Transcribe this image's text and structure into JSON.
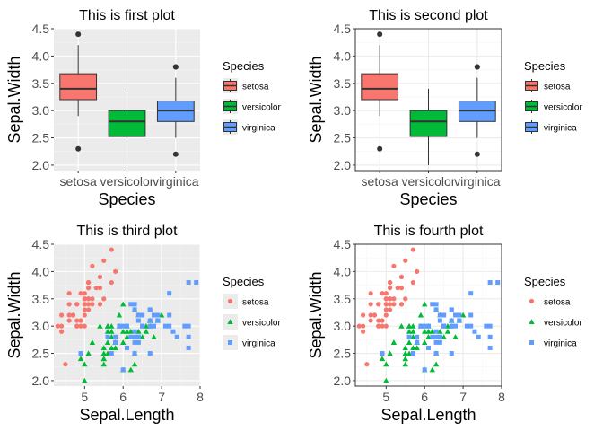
{
  "colors": {
    "setosa": "#F8766D",
    "versicolor": "#00BA38",
    "virginica": "#619CFF",
    "panel_grey": "#EBEBEB",
    "grid_grey_major": "#FFFFFF",
    "grid_bw_major": "#EBEBEB",
    "text": "#000000",
    "tick_text": "#4D4D4D"
  },
  "chart_data": [
    {
      "type": "boxplot",
      "title": "This is first plot",
      "theme": "grey",
      "xlabel": "Species",
      "ylabel": "Sepal.Width",
      "categories": [
        "setosa",
        "versicolor",
        "virginica"
      ],
      "ylim": [
        1.9,
        4.5
      ],
      "yticks": [
        "2.0",
        "2.5",
        "3.0",
        "3.5",
        "4.0",
        "4.5"
      ],
      "legend": {
        "title": "Species",
        "position": "right",
        "entries": [
          "setosa",
          "versicolor",
          "virginica"
        ]
      },
      "boxes": [
        {
          "name": "setosa",
          "min": 2.9,
          "q1": 3.2,
          "median": 3.4,
          "q3": 3.675,
          "max": 4.2,
          "outliers": [
            4.4,
            2.3
          ]
        },
        {
          "name": "versicolor",
          "min": 2.0,
          "q1": 2.525,
          "median": 2.8,
          "q3": 3.0,
          "max": 3.4,
          "outliers": []
        },
        {
          "name": "virginica",
          "min": 2.5,
          "q1": 2.8,
          "median": 3.0,
          "q3": 3.175,
          "max": 3.6,
          "outliers": [
            3.8,
            3.8,
            2.2
          ]
        }
      ]
    },
    {
      "type": "boxplot",
      "title": "This is second plot",
      "theme": "bw",
      "xlabel": "Species",
      "ylabel": "Sepal.Width",
      "categories": [
        "setosa",
        "versicolor",
        "virginica"
      ],
      "ylim": [
        1.9,
        4.5
      ],
      "yticks": [
        "2.0",
        "2.5",
        "3.0",
        "3.5",
        "4.0",
        "4.5"
      ],
      "legend": {
        "title": "Species",
        "position": "right",
        "entries": [
          "setosa",
          "versicolor",
          "virginica"
        ]
      },
      "boxes": [
        {
          "name": "setosa",
          "min": 2.9,
          "q1": 3.2,
          "median": 3.4,
          "q3": 3.675,
          "max": 4.2,
          "outliers": [
            4.4,
            2.3
          ]
        },
        {
          "name": "versicolor",
          "min": 2.0,
          "q1": 2.525,
          "median": 2.8,
          "q3": 3.0,
          "max": 3.4,
          "outliers": []
        },
        {
          "name": "virginica",
          "min": 2.5,
          "q1": 2.8,
          "median": 3.0,
          "q3": 3.175,
          "max": 3.6,
          "outliers": [
            3.8,
            3.8,
            2.2
          ]
        }
      ]
    },
    {
      "type": "scatter",
      "title": "This is third plot",
      "theme": "grey",
      "xlabel": "Sepal.Length",
      "ylabel": "Sepal.Width",
      "xlim": [
        4.2,
        8.0
      ],
      "ylim": [
        1.9,
        4.5
      ],
      "xticks": [
        "5",
        "6",
        "7",
        "8"
      ],
      "yticks": [
        "2.0",
        "2.5",
        "3.0",
        "3.5",
        "4.0",
        "4.5"
      ],
      "legend": {
        "title": "Species",
        "position": "right",
        "entries": [
          "setosa",
          "versicolor",
          "virginica"
        ]
      },
      "series": [
        {
          "name": "setosa",
          "shape": "circle",
          "x": [
            5.1,
            4.9,
            4.7,
            4.6,
            5.0,
            5.4,
            4.6,
            5.0,
            4.4,
            4.9,
            5.4,
            4.8,
            4.8,
            4.3,
            5.8,
            5.7,
            5.4,
            5.1,
            5.7,
            5.1,
            5.4,
            5.1,
            4.6,
            5.1,
            4.8,
            5.0,
            5.0,
            5.2,
            5.2,
            4.7,
            4.8,
            5.4,
            5.2,
            5.5,
            4.9,
            5.0,
            5.5,
            4.9,
            4.4,
            5.1,
            5.0,
            4.5,
            4.4,
            5.0,
            5.1,
            4.8,
            5.1,
            4.6,
            5.3,
            5.0
          ],
          "y": [
            3.5,
            3.0,
            3.2,
            3.1,
            3.6,
            3.9,
            3.4,
            3.4,
            2.9,
            3.1,
            3.7,
            3.4,
            3.0,
            3.0,
            4.0,
            4.4,
            3.9,
            3.5,
            3.8,
            3.8,
            3.4,
            3.7,
            3.6,
            3.3,
            3.4,
            3.0,
            3.4,
            3.5,
            3.4,
            3.2,
            3.1,
            3.4,
            4.1,
            4.2,
            3.1,
            3.2,
            3.5,
            3.6,
            3.0,
            3.4,
            3.5,
            2.3,
            3.2,
            3.5,
            3.8,
            3.0,
            3.8,
            3.2,
            3.7,
            3.3
          ]
        },
        {
          "name": "versicolor",
          "shape": "triangle",
          "x": [
            7.0,
            6.4,
            6.9,
            5.5,
            6.5,
            5.7,
            6.3,
            4.9,
            6.6,
            5.2,
            5.0,
            5.9,
            6.0,
            6.1,
            5.6,
            6.7,
            5.6,
            5.8,
            6.2,
            5.6,
            5.9,
            6.1,
            6.3,
            6.1,
            6.4,
            6.6,
            6.8,
            6.7,
            6.0,
            5.7,
            5.5,
            5.5,
            5.8,
            6.0,
            5.4,
            6.0,
            6.7,
            6.3,
            5.6,
            5.5,
            5.5,
            6.1,
            5.8,
            5.0,
            5.6,
            5.7,
            5.7,
            6.2,
            5.1,
            5.7
          ],
          "y": [
            3.2,
            3.2,
            3.1,
            2.3,
            2.8,
            2.8,
            3.3,
            2.4,
            2.9,
            2.7,
            2.0,
            3.0,
            2.2,
            2.9,
            2.9,
            3.1,
            3.0,
            2.7,
            2.2,
            2.5,
            3.2,
            2.8,
            2.5,
            2.8,
            2.9,
            3.0,
            2.8,
            3.0,
            2.9,
            2.6,
            2.4,
            2.4,
            2.7,
            2.7,
            3.0,
            3.4,
            3.1,
            2.3,
            3.0,
            2.5,
            2.6,
            3.0,
            2.6,
            2.3,
            2.7,
            3.0,
            2.9,
            2.9,
            2.5,
            2.8
          ]
        },
        {
          "name": "virginica",
          "shape": "square",
          "x": [
            6.3,
            5.8,
            7.1,
            6.3,
            6.5,
            7.6,
            4.9,
            7.3,
            6.7,
            7.2,
            6.5,
            6.4,
            6.8,
            5.7,
            5.8,
            6.4,
            6.5,
            7.7,
            7.7,
            6.0,
            6.9,
            5.6,
            7.7,
            6.3,
            6.7,
            7.2,
            6.2,
            6.1,
            6.4,
            7.2,
            7.4,
            7.9,
            6.4,
            6.3,
            6.1,
            7.7,
            6.3,
            6.4,
            6.0,
            6.9,
            6.7,
            6.9,
            5.8,
            6.8,
            6.7,
            6.7,
            6.3,
            6.5,
            6.2,
            5.9
          ],
          "y": [
            3.3,
            2.7,
            3.0,
            2.9,
            3.0,
            3.0,
            2.5,
            2.9,
            2.5,
            3.6,
            3.2,
            2.7,
            3.0,
            2.5,
            2.8,
            3.2,
            3.0,
            3.8,
            2.6,
            2.2,
            3.2,
            2.8,
            2.8,
            2.7,
            3.3,
            3.2,
            2.8,
            3.0,
            2.8,
            3.0,
            2.8,
            3.8,
            2.8,
            2.8,
            2.6,
            3.0,
            3.4,
            3.1,
            3.0,
            3.1,
            3.1,
            3.1,
            2.7,
            3.2,
            3.3,
            3.0,
            2.5,
            3.0,
            3.4,
            3.0
          ]
        }
      ]
    },
    {
      "type": "scatter",
      "title": "This is fourth plot",
      "theme": "bw",
      "xlabel": "Sepal.Length",
      "ylabel": "Sepal.Width",
      "xlim": [
        4.2,
        8.0
      ],
      "ylim": [
        1.9,
        4.5
      ],
      "xticks": [
        "5",
        "6",
        "7",
        "8"
      ],
      "yticks": [
        "2.0",
        "2.5",
        "3.0",
        "3.5",
        "4.0",
        "4.5"
      ],
      "legend": {
        "title": "Species",
        "position": "right",
        "entries": [
          "setosa",
          "versicolor",
          "virginica"
        ]
      },
      "series": [
        {
          "name": "setosa",
          "shape": "circle",
          "x": [
            5.1,
            4.9,
            4.7,
            4.6,
            5.0,
            5.4,
            4.6,
            5.0,
            4.4,
            4.9,
            5.4,
            4.8,
            4.8,
            4.3,
            5.8,
            5.7,
            5.4,
            5.1,
            5.7,
            5.1,
            5.4,
            5.1,
            4.6,
            5.1,
            4.8,
            5.0,
            5.0,
            5.2,
            5.2,
            4.7,
            4.8,
            5.4,
            5.2,
            5.5,
            4.9,
            5.0,
            5.5,
            4.9,
            4.4,
            5.1,
            5.0,
            4.5,
            4.4,
            5.0,
            5.1,
            4.8,
            5.1,
            4.6,
            5.3,
            5.0
          ],
          "y": [
            3.5,
            3.0,
            3.2,
            3.1,
            3.6,
            3.9,
            3.4,
            3.4,
            2.9,
            3.1,
            3.7,
            3.4,
            3.0,
            3.0,
            4.0,
            4.4,
            3.9,
            3.5,
            3.8,
            3.8,
            3.4,
            3.7,
            3.6,
            3.3,
            3.4,
            3.0,
            3.4,
            3.5,
            3.4,
            3.2,
            3.1,
            3.4,
            4.1,
            4.2,
            3.1,
            3.2,
            3.5,
            3.6,
            3.0,
            3.4,
            3.5,
            2.3,
            3.2,
            3.5,
            3.8,
            3.0,
            3.8,
            3.2,
            3.7,
            3.3
          ]
        },
        {
          "name": "versicolor",
          "shape": "triangle",
          "x": [
            7.0,
            6.4,
            6.9,
            5.5,
            6.5,
            5.7,
            6.3,
            4.9,
            6.6,
            5.2,
            5.0,
            5.9,
            6.0,
            6.1,
            5.6,
            6.7,
            5.6,
            5.8,
            6.2,
            5.6,
            5.9,
            6.1,
            6.3,
            6.1,
            6.4,
            6.6,
            6.8,
            6.7,
            6.0,
            5.7,
            5.5,
            5.5,
            5.8,
            6.0,
            5.4,
            6.0,
            6.7,
            6.3,
            5.6,
            5.5,
            5.5,
            6.1,
            5.8,
            5.0,
            5.6,
            5.7,
            5.7,
            6.2,
            5.1,
            5.7
          ],
          "y": [
            3.2,
            3.2,
            3.1,
            2.3,
            2.8,
            2.8,
            3.3,
            2.4,
            2.9,
            2.7,
            2.0,
            3.0,
            2.2,
            2.9,
            2.9,
            3.1,
            3.0,
            2.7,
            2.2,
            2.5,
            3.2,
            2.8,
            2.5,
            2.8,
            2.9,
            3.0,
            2.8,
            3.0,
            2.9,
            2.6,
            2.4,
            2.4,
            2.7,
            2.7,
            3.0,
            3.4,
            3.1,
            2.3,
            3.0,
            2.5,
            2.6,
            3.0,
            2.6,
            2.3,
            2.7,
            3.0,
            2.9,
            2.9,
            2.5,
            2.8
          ]
        },
        {
          "name": "virginica",
          "shape": "square",
          "x": [
            6.3,
            5.8,
            7.1,
            6.3,
            6.5,
            7.6,
            4.9,
            7.3,
            6.7,
            7.2,
            6.5,
            6.4,
            6.8,
            5.7,
            5.8,
            6.4,
            6.5,
            7.7,
            7.7,
            6.0,
            6.9,
            5.6,
            7.7,
            6.3,
            6.7,
            7.2,
            6.2,
            6.1,
            6.4,
            7.2,
            7.4,
            7.9,
            6.4,
            6.3,
            6.1,
            7.7,
            6.3,
            6.4,
            6.0,
            6.9,
            6.7,
            6.9,
            5.8,
            6.8,
            6.7,
            6.7,
            6.3,
            6.5,
            6.2,
            5.9
          ],
          "y": [
            3.3,
            2.7,
            3.0,
            2.9,
            3.0,
            3.0,
            2.5,
            2.9,
            2.5,
            3.6,
            3.2,
            2.7,
            3.0,
            2.5,
            2.8,
            3.2,
            3.0,
            3.8,
            2.6,
            2.2,
            3.2,
            2.8,
            2.8,
            2.7,
            3.3,
            3.2,
            2.8,
            3.0,
            2.8,
            3.0,
            2.8,
            3.8,
            2.8,
            2.8,
            2.6,
            3.0,
            3.4,
            3.1,
            3.0,
            3.1,
            3.1,
            3.1,
            2.7,
            3.2,
            3.3,
            3.0,
            2.5,
            3.0,
            3.4,
            3.0
          ]
        }
      ]
    }
  ]
}
